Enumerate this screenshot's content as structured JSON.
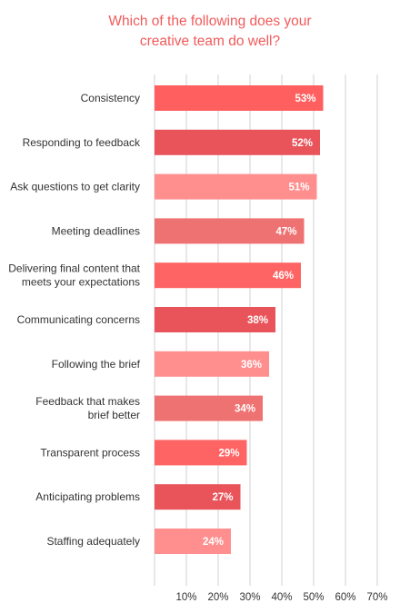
{
  "chart_data": {
    "type": "bar",
    "orientation": "horizontal",
    "title_lines": [
      "Which of the following does your",
      "creative team do well?"
    ],
    "categories": [
      [
        "Consistency"
      ],
      [
        "Responding to feedback"
      ],
      [
        "Ask questions to get clarity"
      ],
      [
        "Meeting deadlines"
      ],
      [
        "Delivering final content that",
        "meets your expectations"
      ],
      [
        "Communicating concerns"
      ],
      [
        "Following the brief"
      ],
      [
        "Feedback that makes",
        "brief better"
      ],
      [
        "Transparent process"
      ],
      [
        "Anticipating problems"
      ],
      [
        "Staffing adequately"
      ]
    ],
    "values": [
      53,
      52,
      51,
      47,
      46,
      38,
      36,
      34,
      29,
      27,
      24
    ],
    "value_labels": [
      "53%",
      "52%",
      "51%",
      "47%",
      "46%",
      "38%",
      "36%",
      "34%",
      "29%",
      "27%",
      "24%"
    ],
    "bar_colors": [
      "#ff5f5f",
      "#e8545a",
      "#ff8f8f",
      "#ef7272",
      "#ff6464",
      "#e8545a",
      "#ff8f8f",
      "#ef7272",
      "#ff6464",
      "#e8545a",
      "#ff8f8f"
    ],
    "xticks": [
      10,
      20,
      30,
      40,
      50,
      60,
      70
    ],
    "xtick_labels": [
      "10%",
      "20%",
      "30%",
      "40%",
      "50%",
      "60%",
      "70%"
    ],
    "xlim": [
      0,
      70
    ],
    "grid": true,
    "title_color": "#f25a5a"
  }
}
